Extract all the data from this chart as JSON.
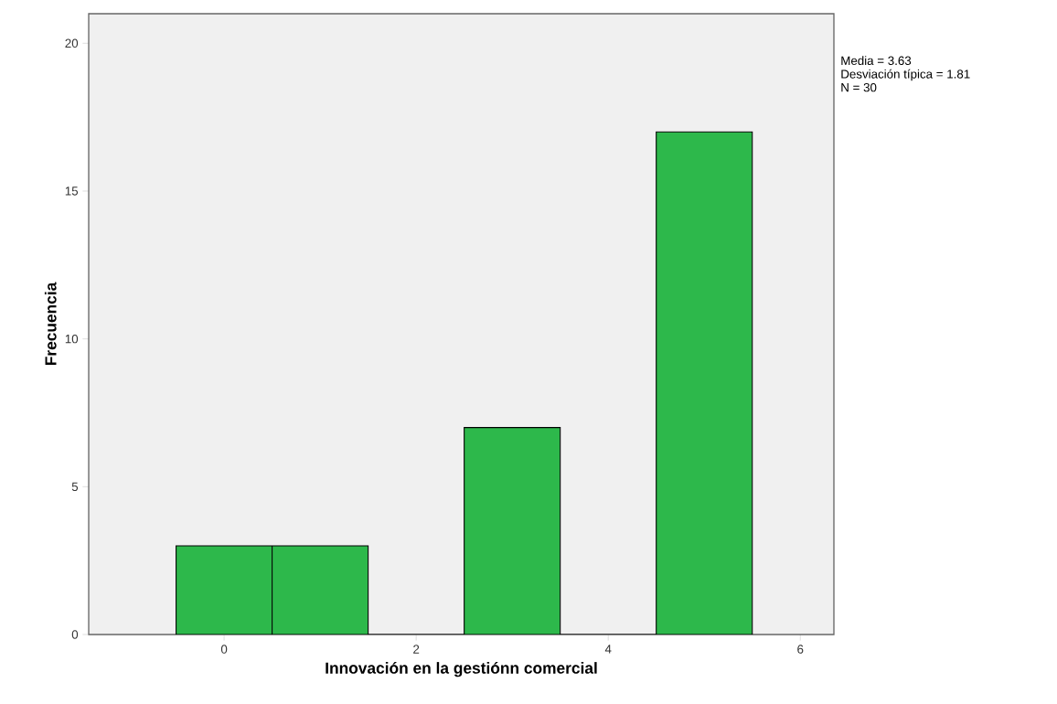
{
  "chart_data": {
    "type": "histogram",
    "xlabel": "Innovación en la gestiónn comercial",
    "ylabel": "Frecuencia",
    "bins": [
      -0.5,
      0.5,
      1.5,
      2.5,
      3.5,
      4.5,
      5.5
    ],
    "values": [
      3,
      3,
      0,
      7,
      0,
      17
    ],
    "color": "#2db84b",
    "xlim": [
      -1.41,
      6.35
    ],
    "ylim": [
      0,
      21
    ],
    "xticks": [
      0,
      2,
      4,
      6
    ],
    "yticks": [
      0,
      5,
      10,
      15,
      20
    ],
    "grid": false,
    "annotations": [
      "Media = 3.63",
      "Desviación típica = 1.81",
      "N = 30"
    ]
  }
}
